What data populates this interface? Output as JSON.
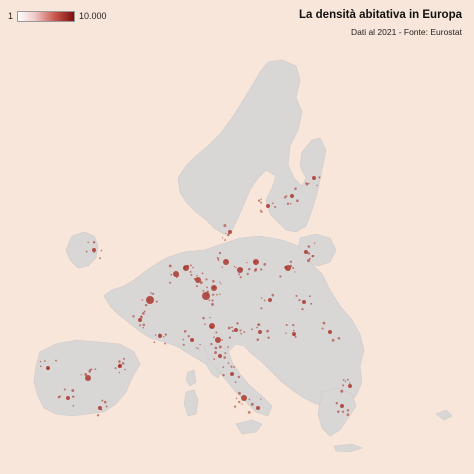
{
  "title": "La densità abitativa in Europa",
  "subtitle": "Dati al 2021 - Fonte: Eurostat",
  "legend": {
    "min_label": "1",
    "max_label": "10.000",
    "low_color": "#ffffff",
    "high_color": "#7d0f0a"
  },
  "map": {
    "background": "#f7e6d9",
    "land_color": "#d9d6d6",
    "hotspot_color": "#a3231a"
  }
}
